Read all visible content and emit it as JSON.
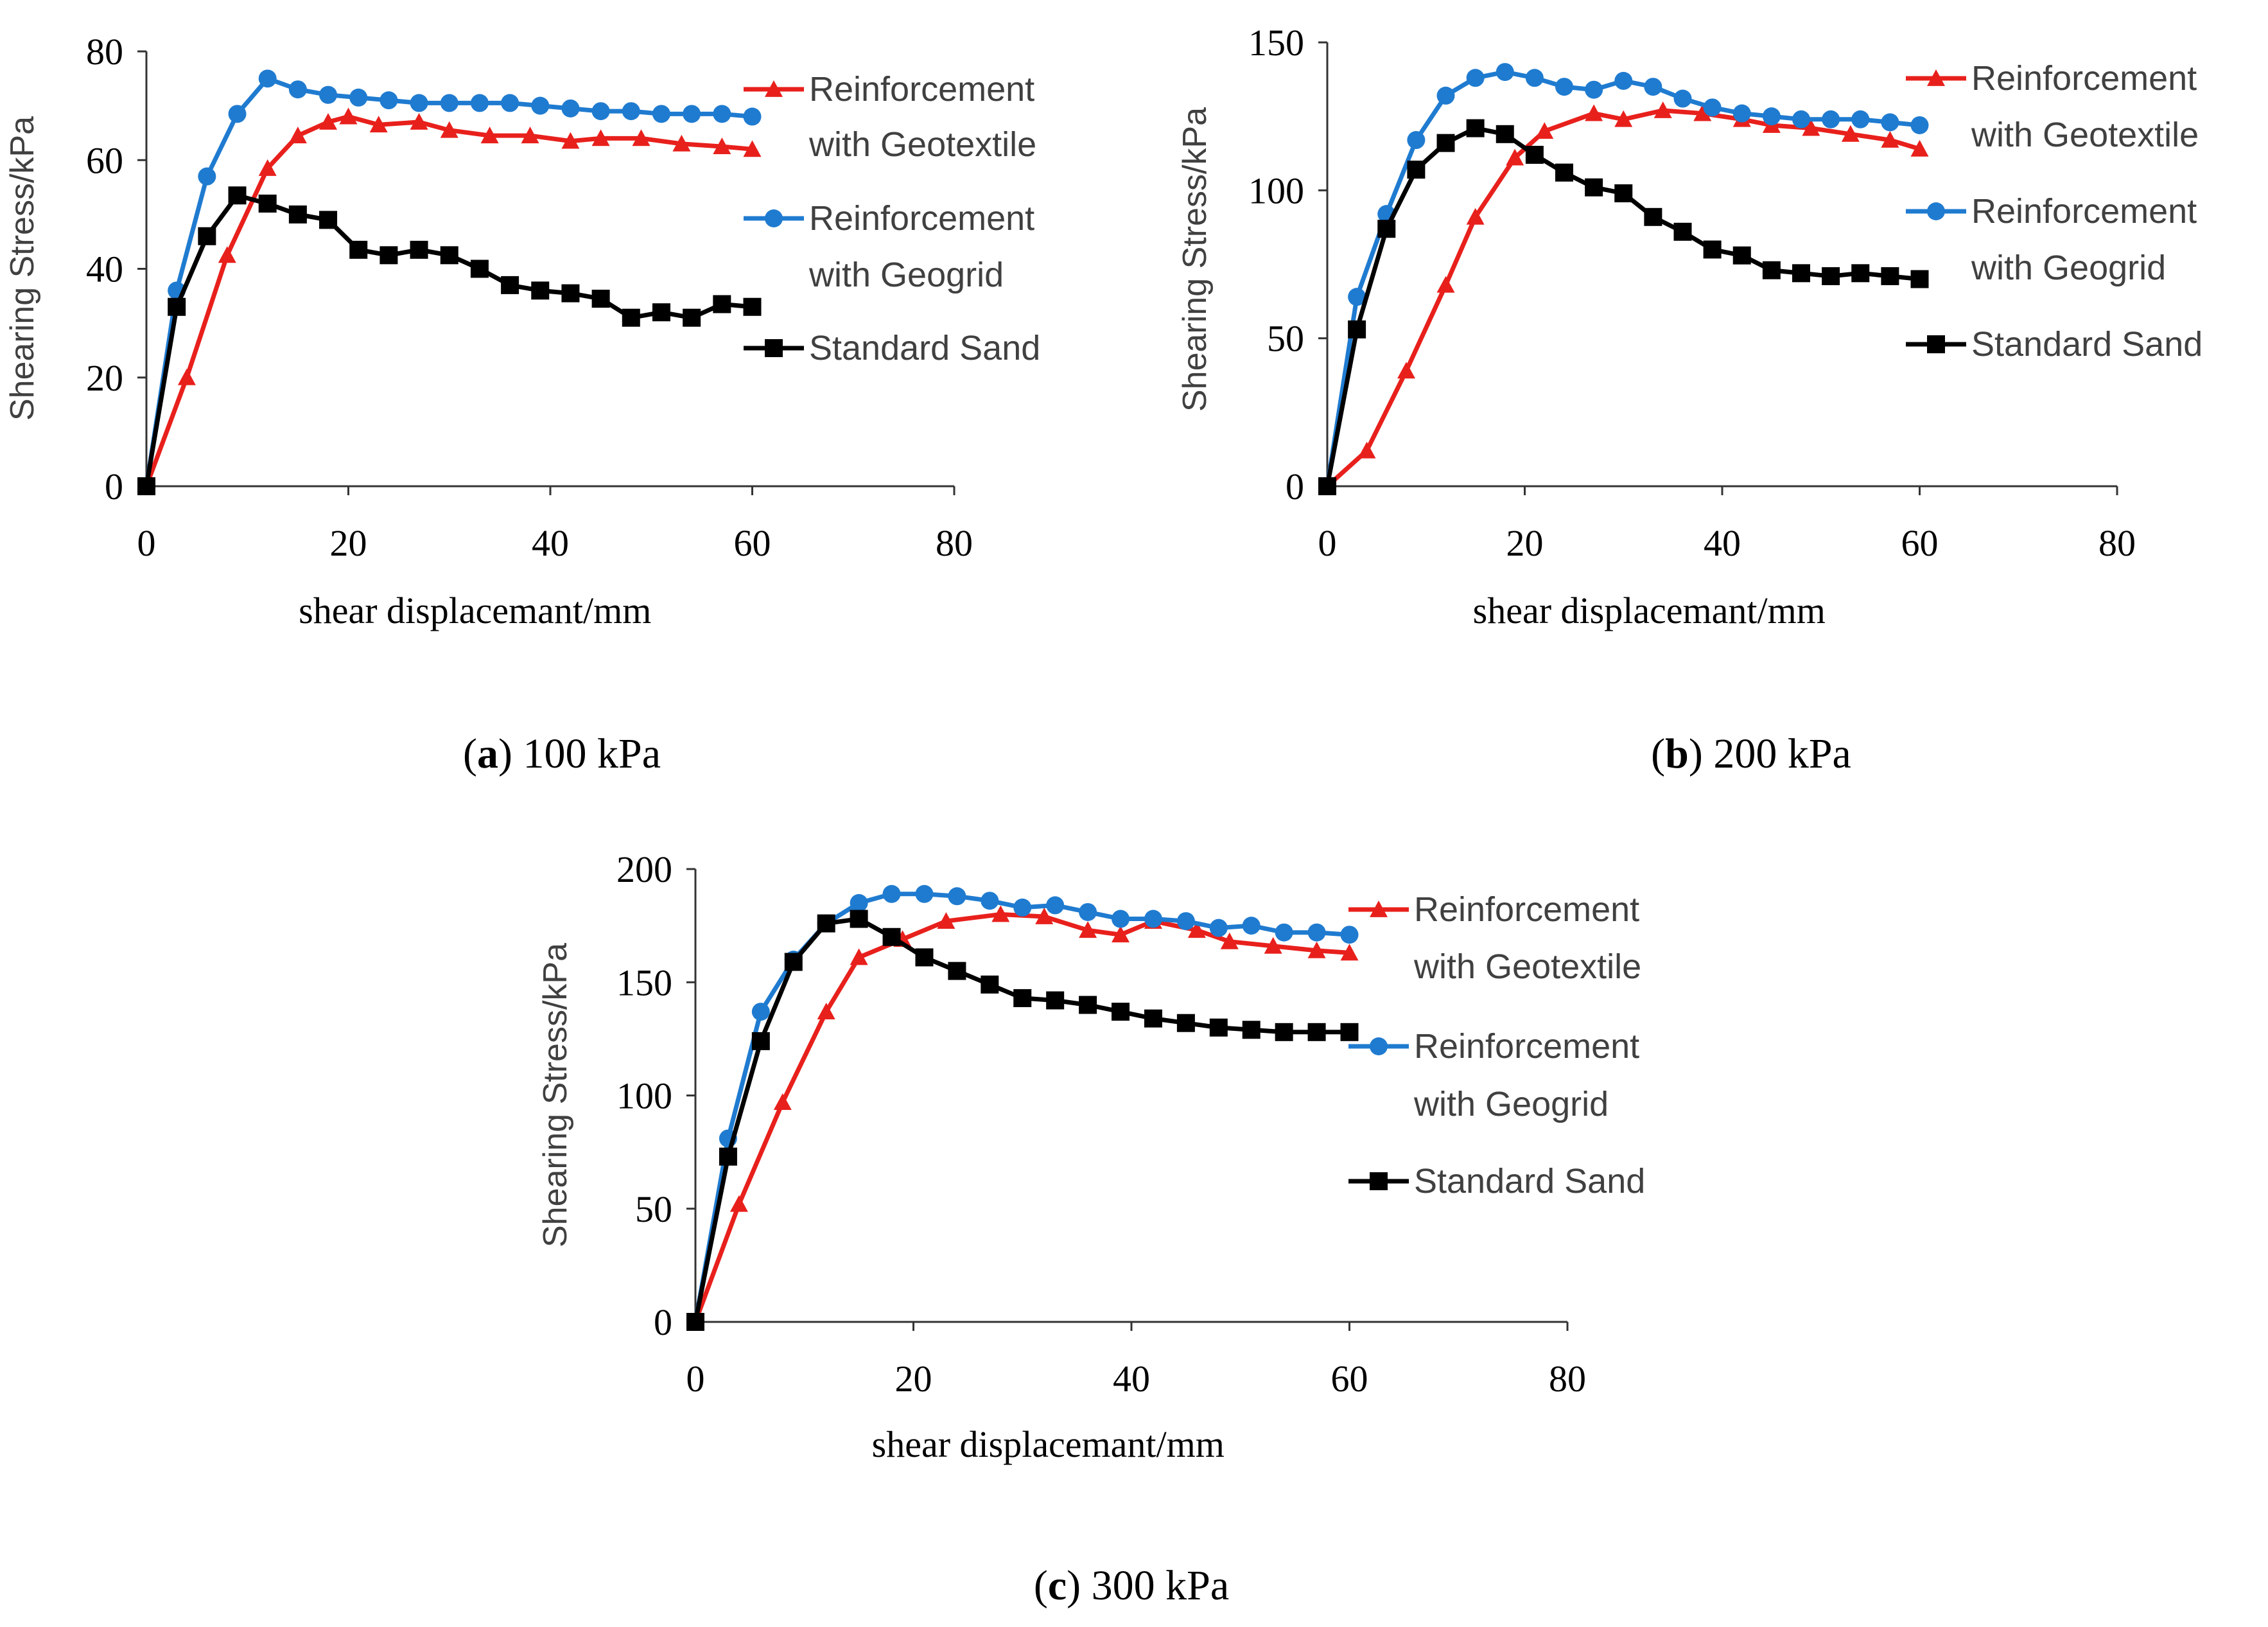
{
  "figure": {
    "colors": {
      "geotextile": "#E8201C",
      "geogrid": "#1F7BD0",
      "sand": "#000000",
      "axis": "#333333"
    },
    "marker_icons": {
      "geotextile": "triangle-icon",
      "geogrid": "circle-icon",
      "sand": "square-icon"
    }
  },
  "chart_data": [
    {
      "id": "a",
      "type": "line",
      "caption_letter": "a",
      "caption_rest": "100 kPa",
      "xlabel": "shear displacemant/mm",
      "ylabel": "Shearing Stress/kPa",
      "xlim": [
        0,
        80
      ],
      "ylim": [
        0,
        80
      ],
      "xticks": [
        0,
        20,
        40,
        60,
        80
      ],
      "yticks": [
        0,
        20,
        40,
        60,
        80
      ],
      "legend": {
        "placement": "right",
        "entries": [
          [
            "Reinforcement",
            "with Geotextile"
          ],
          [
            "Reinforcement",
            "with Geogrid"
          ],
          [
            "Standard Sand"
          ]
        ]
      },
      "series": [
        {
          "key": "geotextile",
          "name": "Reinforcement with Geotextile",
          "x": [
            0,
            4,
            8,
            12,
            15,
            18,
            20,
            23,
            27,
            30,
            34,
            38,
            42,
            45,
            49,
            53,
            57,
            60
          ],
          "y": [
            0,
            20,
            42.5,
            58.5,
            64.5,
            67,
            68,
            66.5,
            67,
            65.5,
            64.5,
            64.5,
            63.5,
            64,
            64,
            63,
            62.5,
            62
          ]
        },
        {
          "key": "geogrid",
          "name": "Reinforcement with Geogrid",
          "x": [
            0,
            3,
            6,
            9,
            12,
            15,
            18,
            21,
            24,
            27,
            30,
            33,
            36,
            39,
            42,
            45,
            48,
            51,
            54,
            57,
            60
          ],
          "y": [
            0,
            36,
            57,
            68.5,
            75,
            73,
            72,
            71.5,
            71,
            70.5,
            70.5,
            70.5,
            70.5,
            70,
            69.5,
            69,
            69,
            68.5,
            68.5,
            68.5,
            68
          ]
        },
        {
          "key": "sand",
          "name": "Standard Sand",
          "x": [
            0,
            3,
            6,
            9,
            12,
            15,
            18,
            21,
            24,
            27,
            30,
            33,
            36,
            39,
            42,
            45,
            48,
            51,
            54,
            57,
            60
          ],
          "y": [
            0,
            33,
            46,
            53.5,
            52,
            50,
            49,
            43.5,
            42.5,
            43.5,
            42.5,
            40,
            37,
            36,
            35.5,
            34.5,
            31,
            32,
            31,
            33.5,
            33
          ]
        }
      ]
    },
    {
      "id": "b",
      "type": "line",
      "caption_letter": "b",
      "caption_rest": "200 kPa",
      "xlabel": "shear displacemant/mm",
      "ylabel": "Shearing Stress/kPa",
      "xlim": [
        0,
        80
      ],
      "ylim": [
        0,
        150
      ],
      "xticks": [
        0,
        20,
        40,
        60,
        80
      ],
      "yticks": [
        0,
        50,
        100,
        150
      ],
      "legend": {
        "placement": "right",
        "entries": [
          [
            "Reinforcement",
            "with Geotextile"
          ],
          [
            "Reinforcement",
            "with Geogrid"
          ],
          [
            "Standard Sand"
          ]
        ]
      },
      "series": [
        {
          "key": "geotextile",
          "name": "Reinforcement with Geotextile",
          "x": [
            0,
            4,
            8,
            12,
            15,
            19,
            22,
            27,
            30,
            34,
            38,
            42,
            45,
            49,
            53,
            57,
            60
          ],
          "y": [
            0,
            12,
            39,
            68,
            91,
            111,
            120,
            126,
            124,
            127,
            126,
            124,
            122,
            121,
            119,
            117,
            114
          ]
        },
        {
          "key": "geogrid",
          "name": "Reinforcement with Geogrid",
          "x": [
            0,
            3,
            6,
            9,
            12,
            15,
            18,
            21,
            24,
            27,
            30,
            33,
            36,
            39,
            42,
            45,
            48,
            51,
            54,
            57,
            60
          ],
          "y": [
            0,
            64,
            92,
            117,
            132,
            138,
            140,
            138,
            135,
            134,
            137,
            135,
            131,
            128,
            126,
            125,
            124,
            124,
            124,
            123,
            122
          ]
        },
        {
          "key": "sand",
          "name": "Standard Sand",
          "x": [
            0,
            3,
            6,
            9,
            12,
            15,
            18,
            21,
            24,
            27,
            30,
            33,
            36,
            39,
            42,
            45,
            48,
            51,
            54,
            57,
            60
          ],
          "y": [
            0,
            53,
            87,
            107,
            116,
            121,
            119,
            112,
            106,
            101,
            99,
            91,
            86,
            80,
            78,
            73,
            72,
            71,
            72,
            71,
            70
          ]
        }
      ]
    },
    {
      "id": "c",
      "type": "line",
      "caption_letter": "c",
      "caption_rest": "300 kPa",
      "xlabel": "shear displacemant/mm",
      "ylabel": "Shearing Stress/kPa",
      "xlim": [
        0,
        80
      ],
      "ylim": [
        0,
        200
      ],
      "xticks": [
        0,
        20,
        40,
        60,
        80
      ],
      "yticks": [
        0,
        50,
        100,
        150,
        200
      ],
      "legend": {
        "placement": "right",
        "entries": [
          [
            "Reinforcement",
            "with Geotextile"
          ],
          [
            "Reinforcement",
            "with Geogrid"
          ],
          [
            "Standard Sand"
          ]
        ]
      },
      "series": [
        {
          "key": "geotextile",
          "name": "Reinforcement with Geotextile",
          "x": [
            0,
            4,
            8,
            12,
            15,
            19,
            23,
            28,
            32,
            36,
            39,
            42,
            46,
            49,
            53,
            57,
            60
          ],
          "y": [
            0,
            52,
            97,
            137,
            161,
            169,
            177,
            180,
            179,
            173,
            171,
            177,
            173,
            168,
            166,
            164,
            163
          ]
        },
        {
          "key": "geogrid",
          "name": "Reinforcement with Geogrid",
          "x": [
            0,
            3,
            6,
            9,
            12,
            15,
            18,
            21,
            24,
            27,
            30,
            33,
            36,
            39,
            42,
            45,
            48,
            51,
            54,
            57,
            60
          ],
          "y": [
            0,
            81,
            137,
            160,
            176,
            185,
            189,
            189,
            188,
            186,
            183,
            184,
            181,
            178,
            178,
            177,
            174,
            175,
            172,
            172,
            171
          ]
        },
        {
          "key": "sand",
          "name": "Standard Sand",
          "x": [
            0,
            3,
            6,
            9,
            12,
            15,
            18,
            21,
            24,
            27,
            30,
            33,
            36,
            39,
            42,
            45,
            48,
            51,
            54,
            57,
            60
          ],
          "y": [
            0,
            73,
            124,
            159,
            176,
            178,
            170,
            161,
            155,
            149,
            143,
            142,
            140,
            137,
            134,
            132,
            130,
            129,
            128,
            128,
            128
          ]
        }
      ]
    }
  ]
}
